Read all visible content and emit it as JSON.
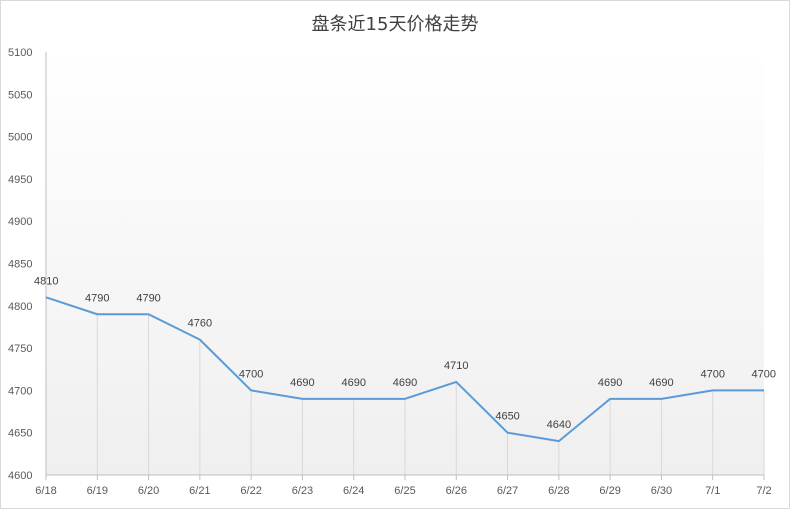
{
  "chart_data": {
    "type": "line",
    "title": "盘条近15天价格走势",
    "categories": [
      "6/18",
      "6/19",
      "6/20",
      "6/21",
      "6/22",
      "6/23",
      "6/24",
      "6/25",
      "6/26",
      "6/27",
      "6/28",
      "6/29",
      "6/30",
      "7/1",
      "7/2"
    ],
    "series": [
      {
        "values": [
          4810,
          4790,
          4790,
          4760,
          4700,
          4690,
          4690,
          4690,
          4710,
          4650,
          4640,
          4690,
          4690,
          4700,
          4700
        ]
      }
    ],
    "y_ticks": [
      "4600",
      "4650",
      "4700",
      "4750",
      "4800",
      "4850",
      "4900",
      "4950",
      "5000",
      "5050",
      "5100"
    ],
    "ylim": [
      4600,
      5100
    ],
    "xlabel": "",
    "ylabel": "",
    "grid": "vertical drop lines from points",
    "legend": "none",
    "line_color": "#5b9bd5",
    "data_labels": true
  }
}
